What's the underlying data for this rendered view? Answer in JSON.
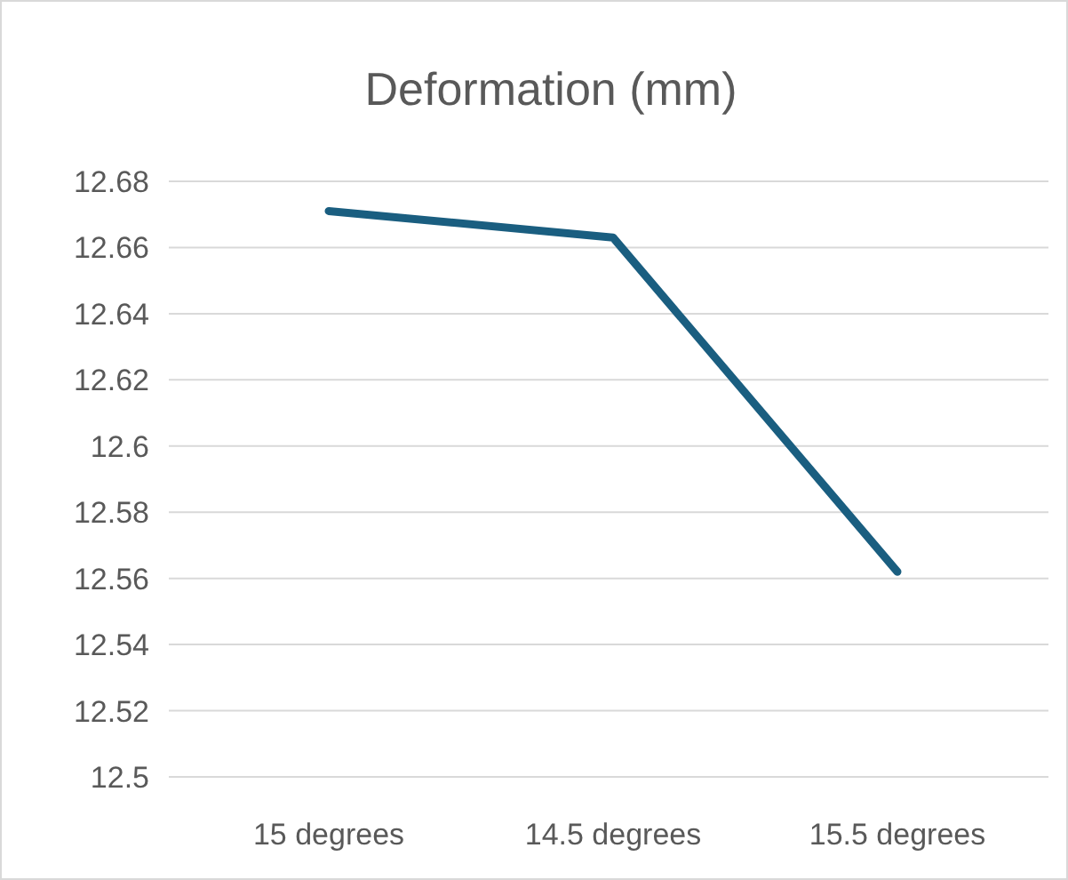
{
  "chart_data": {
    "type": "line",
    "title": "Deformation (mm)",
    "categories": [
      "15 degrees",
      "14.5 degrees",
      "15.5 degrees"
    ],
    "series": [
      {
        "color": "#1a5e80",
        "values": [
          12.671,
          12.663,
          12.562
        ]
      }
    ],
    "ylim": [
      12.5,
      12.68
    ],
    "yticks": [
      12.5,
      12.52,
      12.54,
      12.56,
      12.58,
      12.6,
      12.62,
      12.64,
      12.66,
      12.68
    ],
    "grid": "y",
    "marker": "none",
    "line_style": "solid"
  }
}
